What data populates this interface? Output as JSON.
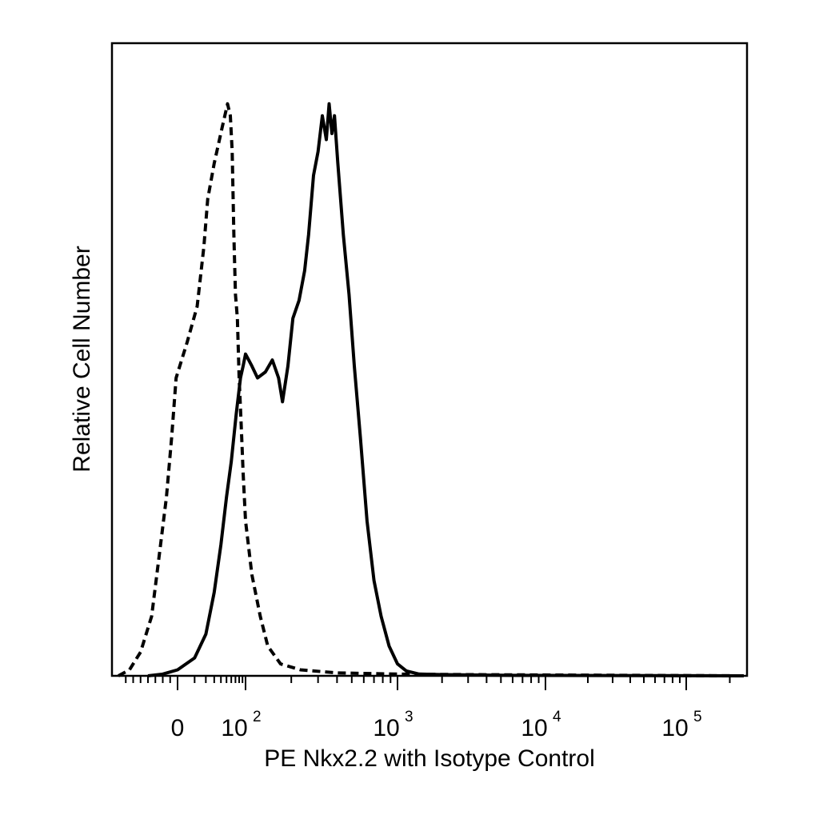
{
  "chart_data": {
    "type": "line",
    "xlabel": "PE Nkx2.2 with Isotype Control",
    "ylabel": "Relative Cell Number",
    "x_scale": "biexponential",
    "xlim": [
      -80,
      250000
    ],
    "ylim": [
      0,
      100
    ],
    "grid": false,
    "x_tick_labels": [
      {
        "value": 0,
        "base": "0",
        "exp": ""
      },
      {
        "value": 100,
        "base": "10",
        "exp": "2"
      },
      {
        "value": 1000,
        "base": "10",
        "exp": "3"
      },
      {
        "value": 10000,
        "base": "10",
        "exp": "4"
      },
      {
        "value": 100000,
        "base": "10",
        "exp": "5"
      }
    ],
    "series": [
      {
        "style": "dashed",
        "color": "#000000",
        "points": [
          [
            -80,
            0
          ],
          [
            -65,
            1
          ],
          [
            -50,
            4
          ],
          [
            -35,
            10
          ],
          [
            -25,
            20
          ],
          [
            -15,
            30
          ],
          [
            -8,
            40
          ],
          [
            -2,
            50
          ],
          [
            5,
            56
          ],
          [
            12,
            62
          ],
          [
            18,
            72
          ],
          [
            22,
            80
          ],
          [
            30,
            86
          ],
          [
            42,
            92
          ],
          [
            52,
            96
          ],
          [
            58,
            94
          ],
          [
            62,
            88
          ],
          [
            66,
            74
          ],
          [
            70,
            64
          ],
          [
            75,
            60
          ],
          [
            80,
            50
          ],
          [
            86,
            42
          ],
          [
            92,
            34
          ],
          [
            100,
            26
          ],
          [
            110,
            17
          ],
          [
            125,
            10
          ],
          [
            140,
            5
          ],
          [
            170,
            2
          ],
          [
            230,
            1
          ],
          [
            400,
            0.5
          ],
          [
            1000,
            0.3
          ],
          [
            3000,
            0.2
          ],
          [
            250000,
            0
          ]
        ]
      },
      {
        "style": "solid",
        "color": "#000000",
        "points": [
          [
            -40,
            0
          ],
          [
            -20,
            0.3
          ],
          [
            0,
            1
          ],
          [
            10,
            3
          ],
          [
            20,
            7
          ],
          [
            30,
            14
          ],
          [
            40,
            22
          ],
          [
            50,
            30
          ],
          [
            60,
            36
          ],
          [
            72,
            44
          ],
          [
            84,
            50
          ],
          [
            92,
            52
          ],
          [
            100,
            54
          ],
          [
            110,
            52
          ],
          [
            120,
            50
          ],
          [
            135,
            51
          ],
          [
            150,
            53
          ],
          [
            165,
            50
          ],
          [
            175,
            46
          ],
          [
            190,
            52
          ],
          [
            205,
            60
          ],
          [
            225,
            63
          ],
          [
            245,
            68
          ],
          [
            260,
            74
          ],
          [
            280,
            84
          ],
          [
            300,
            88
          ],
          [
            320,
            94
          ],
          [
            340,
            90
          ],
          [
            355,
            96
          ],
          [
            370,
            91
          ],
          [
            385,
            94
          ],
          [
            405,
            86
          ],
          [
            440,
            74
          ],
          [
            480,
            64
          ],
          [
            520,
            52
          ],
          [
            570,
            40
          ],
          [
            630,
            26
          ],
          [
            700,
            16
          ],
          [
            780,
            10
          ],
          [
            880,
            5
          ],
          [
            1000,
            2
          ],
          [
            1150,
            0.8
          ],
          [
            1400,
            0.3
          ],
          [
            2000,
            0.2
          ],
          [
            5000,
            0.1
          ],
          [
            250000,
            0
          ]
        ]
      }
    ]
  }
}
